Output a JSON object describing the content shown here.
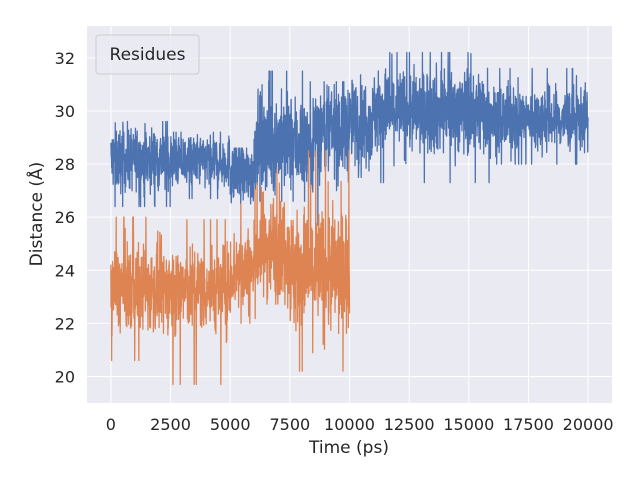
{
  "chart_data": {
    "type": "line",
    "title": "",
    "xlabel": "Time (ps)",
    "ylabel": "Distance (Å)",
    "xlim": [
      -1000,
      21000
    ],
    "ylim": [
      19.0,
      33.2
    ],
    "x_ticks": [
      0,
      2500,
      5000,
      7500,
      10000,
      12500,
      15000,
      17500,
      20000
    ],
    "x_tick_labels": [
      "0",
      "2500",
      "5000",
      "7500",
      "10000",
      "12500",
      "15000",
      "17500",
      "20000"
    ],
    "y_ticks": [
      20,
      22,
      24,
      26,
      28,
      30,
      32
    ],
    "y_tick_labels": [
      "20",
      "22",
      "24",
      "26",
      "28",
      "30",
      "32"
    ],
    "grid": true,
    "legend": {
      "title": "Residues",
      "placement": "top-left",
      "entries": []
    },
    "background": "#eaeaf2",
    "series": [
      {
        "color": "#4c72b0",
        "x_range": [
          0,
          20000
        ],
        "segments": [
          {
            "x": [
              0,
              2500
            ],
            "mean": 28.2,
            "spread": 0.6,
            "min": 26.4,
            "max": 29.6
          },
          {
            "x": [
              2500,
              5000
            ],
            "mean": 28.1,
            "spread": 0.5,
            "min": 26.7,
            "max": 29.2
          },
          {
            "x": [
              5000,
              6000
            ],
            "mean": 27.6,
            "spread": 0.6,
            "min": 26.5,
            "max": 28.6
          },
          {
            "x": [
              6000,
              8500
            ],
            "mean": 28.8,
            "spread": 0.9,
            "min": 26.6,
            "max": 31.5
          },
          {
            "x": [
              8500,
              10000
            ],
            "mean": 29.3,
            "spread": 0.9,
            "min": 25.7,
            "max": 31.1
          },
          {
            "x": [
              10000,
              11000
            ],
            "mean": 29.6,
            "spread": 0.8,
            "min": 27.5,
            "max": 32.4
          },
          {
            "x": [
              11000,
              16000
            ],
            "mean": 30.0,
            "spread": 0.8,
            "min": 27.3,
            "max": 32.2
          },
          {
            "x": [
              16000,
              20000
            ],
            "mean": 29.7,
            "spread": 0.6,
            "min": 28.0,
            "max": 31.6
          }
        ]
      },
      {
        "color": "#dd8452",
        "x_range": [
          0,
          10000
        ],
        "segments": [
          {
            "x": [
              0,
              2500
            ],
            "mean": 23.3,
            "spread": 0.8,
            "min": 20.6,
            "max": 26.0
          },
          {
            "x": [
              2500,
              5000
            ],
            "mean": 23.3,
            "spread": 0.8,
            "min": 19.7,
            "max": 25.9
          },
          {
            "x": [
              5000,
              6000
            ],
            "mean": 24.0,
            "spread": 0.8,
            "min": 22.0,
            "max": 26.5
          },
          {
            "x": [
              6000,
              7500
            ],
            "mean": 24.9,
            "spread": 1.0,
            "min": 21.2,
            "max": 27.8
          },
          {
            "x": [
              7500,
              10000
            ],
            "mean": 24.0,
            "spread": 1.2,
            "min": 20.2,
            "max": 28.5
          }
        ]
      }
    ]
  }
}
